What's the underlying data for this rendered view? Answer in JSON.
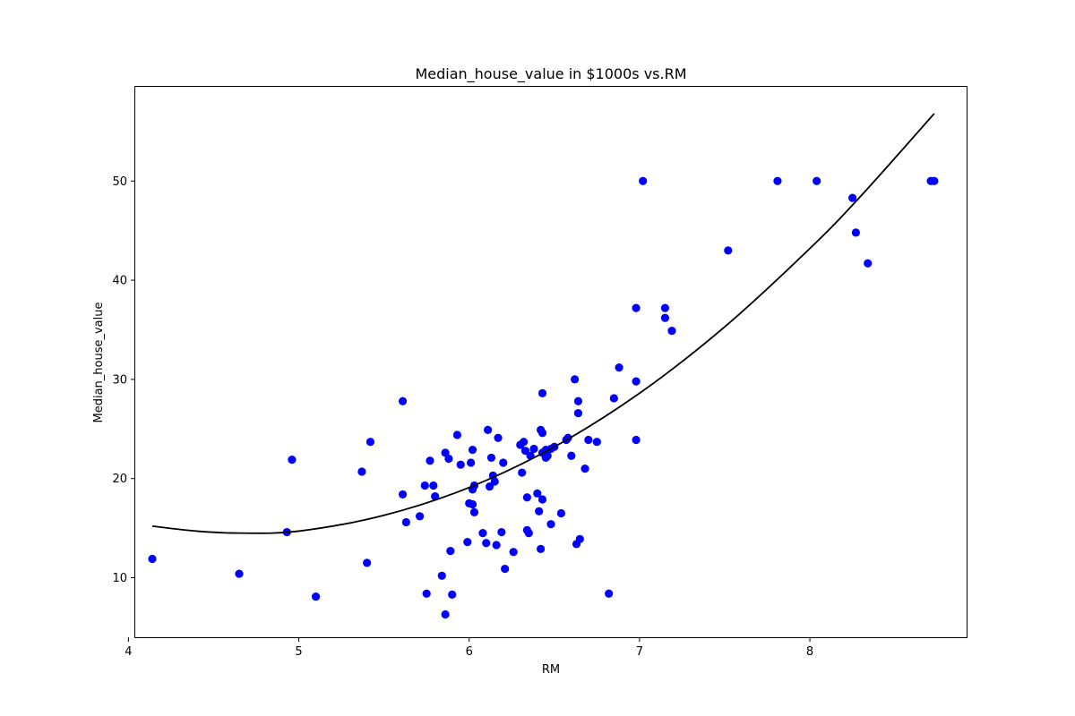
{
  "chart_data": {
    "type": "scatter",
    "title": "Median_house_value in $1000s vs.RM",
    "xlabel": "RM",
    "ylabel": "Median_house_value",
    "xlim": [
      4.04,
      8.92
    ],
    "ylim": [
      4.0,
      59.5
    ],
    "xticks": [
      4,
      5,
      6,
      7,
      8
    ],
    "yticks": [
      10,
      20,
      30,
      40,
      50
    ],
    "grid": false,
    "series": [
      {
        "kind": "scatter",
        "color": "#0000ff",
        "points": [
          [
            4.14,
            11.9
          ],
          [
            4.65,
            10.4
          ],
          [
            4.93,
            14.6
          ],
          [
            4.96,
            21.9
          ],
          [
            5.1,
            8.1
          ],
          [
            5.37,
            20.7
          ],
          [
            5.4,
            11.5
          ],
          [
            5.42,
            23.7
          ],
          [
            5.61,
            27.8
          ],
          [
            5.61,
            18.4
          ],
          [
            5.63,
            15.6
          ],
          [
            5.71,
            16.2
          ],
          [
            5.74,
            19.3
          ],
          [
            5.75,
            8.4
          ],
          [
            5.77,
            21.8
          ],
          [
            5.79,
            19.3
          ],
          [
            5.8,
            18.2
          ],
          [
            5.84,
            10.2
          ],
          [
            5.86,
            6.3
          ],
          [
            5.86,
            22.6
          ],
          [
            5.88,
            22.0
          ],
          [
            5.89,
            12.7
          ],
          [
            5.9,
            8.3
          ],
          [
            5.93,
            24.4
          ],
          [
            5.95,
            21.4
          ],
          [
            5.99,
            13.6
          ],
          [
            6.0,
            17.5
          ],
          [
            6.01,
            21.6
          ],
          [
            6.02,
            18.9
          ],
          [
            6.02,
            22.9
          ],
          [
            6.02,
            17.4
          ],
          [
            6.03,
            19.3
          ],
          [
            6.03,
            16.6
          ],
          [
            6.08,
            14.5
          ],
          [
            6.1,
            13.5
          ],
          [
            6.11,
            24.9
          ],
          [
            6.12,
            19.2
          ],
          [
            6.13,
            22.1
          ],
          [
            6.14,
            20.3
          ],
          [
            6.15,
            19.7
          ],
          [
            6.16,
            13.3
          ],
          [
            6.17,
            24.1
          ],
          [
            6.19,
            14.6
          ],
          [
            6.2,
            21.6
          ],
          [
            6.21,
            10.9
          ],
          [
            6.26,
            12.6
          ],
          [
            6.3,
            23.4
          ],
          [
            6.31,
            20.6
          ],
          [
            6.32,
            23.7
          ],
          [
            6.33,
            22.8
          ],
          [
            6.34,
            18.1
          ],
          [
            6.34,
            14.8
          ],
          [
            6.35,
            14.5
          ],
          [
            6.36,
            22.3
          ],
          [
            6.38,
            23.0
          ],
          [
            6.4,
            18.5
          ],
          [
            6.41,
            16.7
          ],
          [
            6.42,
            12.9
          ],
          [
            6.42,
            24.9
          ],
          [
            6.43,
            28.6
          ],
          [
            6.43,
            22.6
          ],
          [
            6.43,
            24.6
          ],
          [
            6.43,
            17.9
          ],
          [
            6.45,
            22.9
          ],
          [
            6.45,
            22.1
          ],
          [
            6.46,
            22.3
          ],
          [
            6.48,
            15.4
          ],
          [
            6.48,
            23.0
          ],
          [
            6.5,
            23.2
          ],
          [
            6.54,
            16.5
          ],
          [
            6.57,
            23.9
          ],
          [
            6.58,
            24.1
          ],
          [
            6.6,
            22.3
          ],
          [
            6.62,
            30.0
          ],
          [
            6.63,
            13.4
          ],
          [
            6.64,
            27.8
          ],
          [
            6.64,
            26.6
          ],
          [
            6.65,
            13.9
          ],
          [
            6.68,
            21.0
          ],
          [
            6.7,
            23.9
          ],
          [
            6.75,
            23.7
          ],
          [
            6.82,
            8.4
          ],
          [
            6.85,
            28.1
          ],
          [
            6.88,
            31.2
          ],
          [
            6.98,
            37.2
          ],
          [
            6.98,
            29.8
          ],
          [
            6.98,
            23.9
          ],
          [
            7.02,
            50.0
          ],
          [
            7.15,
            37.2
          ],
          [
            7.15,
            36.2
          ],
          [
            7.19,
            34.9
          ],
          [
            7.52,
            43.0
          ],
          [
            7.81,
            50.0
          ],
          [
            8.04,
            50.0
          ],
          [
            8.25,
            48.3
          ],
          [
            8.27,
            44.8
          ],
          [
            8.34,
            41.7
          ],
          [
            8.71,
            50.0
          ],
          [
            8.73,
            50.0
          ]
        ]
      },
      {
        "kind": "line",
        "color": "#000000",
        "curve": "quadratic-fit",
        "x": [
          4.14,
          4.4,
          4.65,
          5.0,
          5.5,
          6.0,
          6.5,
          7.0,
          7.5,
          8.0,
          8.3,
          8.73
        ],
        "y": [
          15.2,
          14.7,
          14.5,
          14.7,
          16.3,
          19.1,
          23.2,
          28.6,
          35.3,
          43.2,
          48.5,
          56.8
        ]
      }
    ]
  }
}
